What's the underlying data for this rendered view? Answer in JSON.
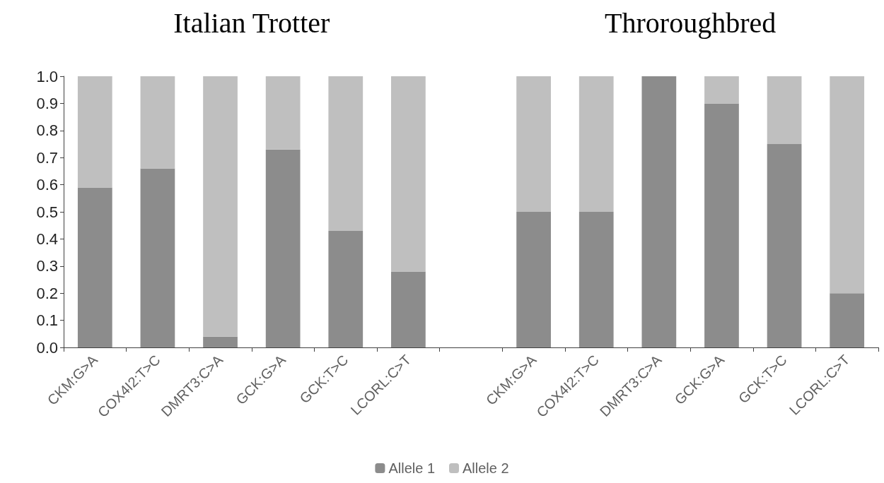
{
  "chart_data": {
    "type": "bar",
    "stacked": true,
    "categories": [
      "CKM:G>A",
      "COX4I2:T>C",
      "DMRT3:C>A",
      "GCK:G>A",
      "GCK:T>C",
      "LCORL:C>T",
      null,
      "CKM:G>A",
      "COX4I2:T>C",
      "DMRT3:C>A",
      "GCK:G>A",
      "GCK:T>C",
      "LCORL:C>T"
    ],
    "series": [
      {
        "name": "Allele 1",
        "color": "#8c8c8c",
        "values": [
          0.59,
          0.66,
          0.04,
          0.73,
          0.43,
          0.28,
          null,
          0.5,
          0.5,
          1.0,
          0.9,
          0.75,
          0.2
        ]
      },
      {
        "name": "Allele 2",
        "color": "#bfbfbf",
        "values": [
          0.41,
          0.34,
          0.96,
          0.27,
          0.57,
          0.72,
          null,
          0.5,
          0.5,
          0.0,
          0.1,
          0.25,
          0.8
        ]
      }
    ],
    "annotations": [
      "Italian Trotter",
      "Throroughbred"
    ],
    "ylim": [
      0,
      1
    ],
    "yticks": [
      {
        "value": 0,
        "label": "0.0"
      },
      {
        "value": 0.1,
        "label": "0.1"
      },
      {
        "value": 0.2,
        "label": "0.2"
      },
      {
        "value": 0.3,
        "label": "0.3"
      },
      {
        "value": 0.4,
        "label": "0.4"
      },
      {
        "value": 0.5,
        "label": "0.5"
      },
      {
        "value": 0.6,
        "label": "0.6"
      },
      {
        "value": 0.7,
        "label": "0.7"
      },
      {
        "value": 0.8,
        "label": "0.8"
      },
      {
        "value": 0.9,
        "label": "0.9"
      },
      {
        "value": 1,
        "label": "1.0"
      }
    ],
    "grid": false,
    "legend": "bottom"
  }
}
